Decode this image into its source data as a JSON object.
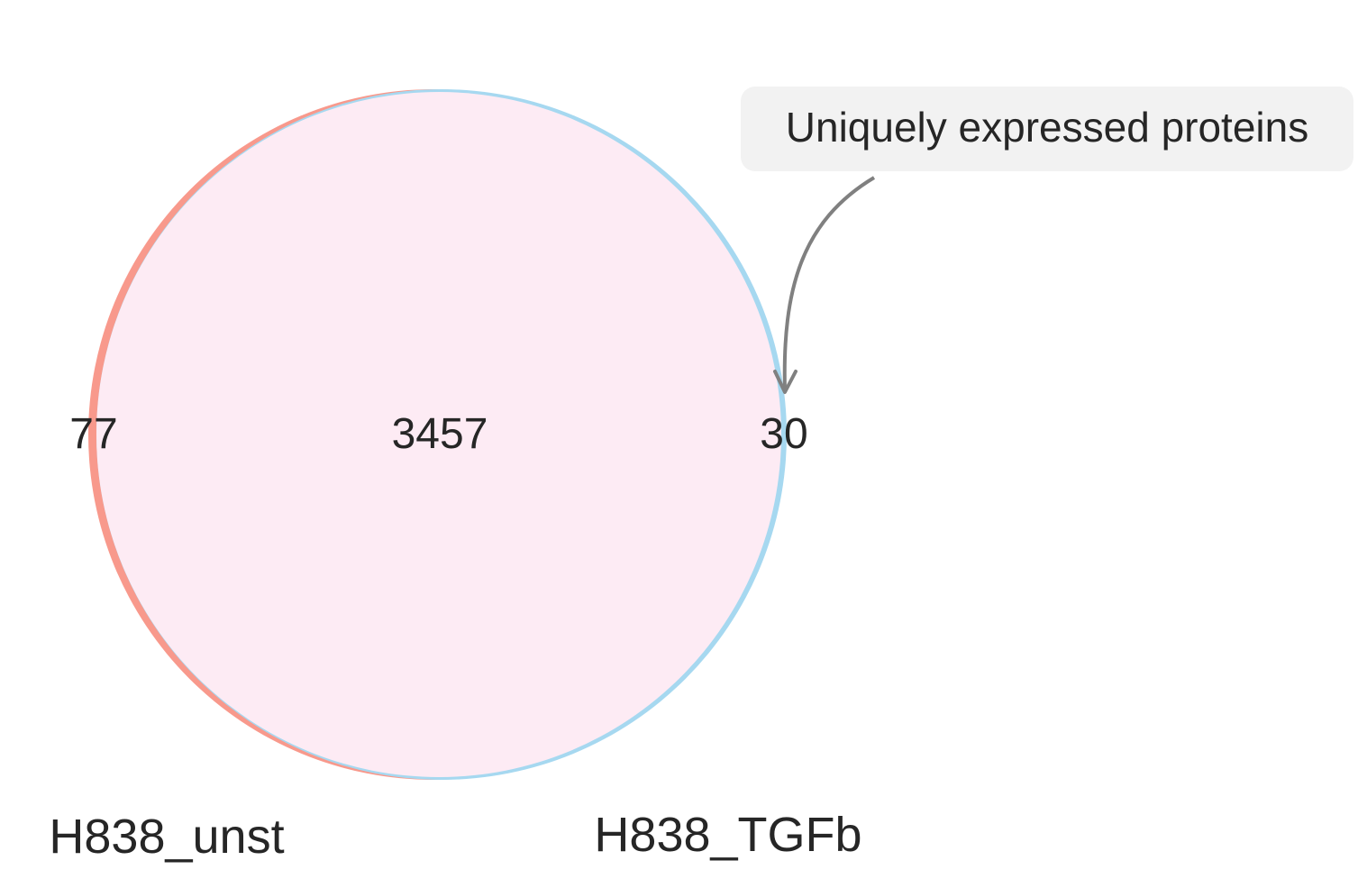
{
  "diagram": {
    "type": "venn2",
    "sets": [
      {
        "name": "H838_unst",
        "color": "#f8998c"
      },
      {
        "name": "H838_TGFb",
        "color": "#a6d8f0"
      }
    ],
    "regions": {
      "only_first": "77",
      "intersection": "3457",
      "only_second": "30"
    },
    "intersection_color": "#fdebf4",
    "annotation": {
      "text": "Uniquely expressed proteins",
      "box_color": "#f2f2f2",
      "arrow_color": "#808080"
    }
  }
}
